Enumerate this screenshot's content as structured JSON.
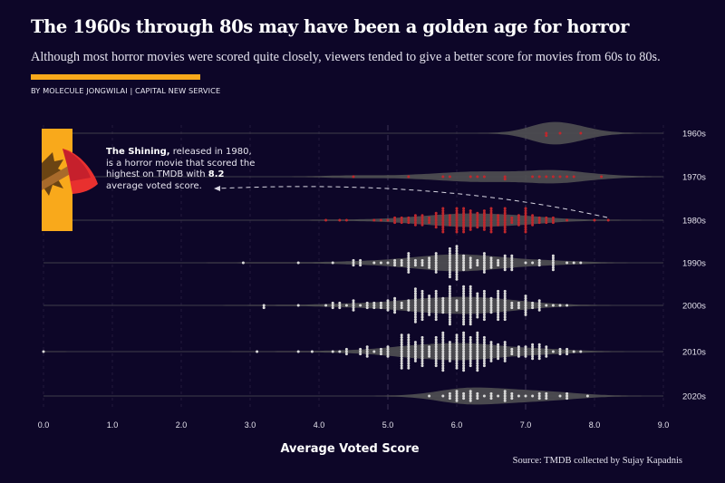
{
  "header": {
    "title": "The 1960s through 80s may have been a golden age for horror",
    "subtitle": "Although most horror movies were scored quite closely, viewers tended to give a better score for movies from 60s to 80s.",
    "byline": "BY MOLECULE JONGWILAI  |  CAPITAL NEW SERVICE",
    "accent_color": "#f9a91b"
  },
  "annotation": {
    "movie": "The Shining,",
    "text_1": " released in 1980, is a horror movie that scored the highest on TMDB with ",
    "score": "8.2",
    "text_2": " average voted score.",
    "icon": "axe-icon"
  },
  "source": "Source: TMDB collected by Sujay Kapadnis",
  "chart_data": {
    "type": "beeswarm-violin",
    "xlabel": "Average Voted Score",
    "xlim": [
      0,
      9
    ],
    "xticks": [
      "0.0",
      "1.0",
      "2.0",
      "3.0",
      "4.0",
      "5.0",
      "6.0",
      "7.0",
      "8.0",
      "9.0"
    ],
    "highlight_color": "#c0272d",
    "dot_color": "#d9d9d9",
    "violin_color": "#555555",
    "series": [
      {
        "name": "1960s",
        "highlight": true,
        "bins": [
          [
            7.3,
            2
          ],
          [
            7.5,
            1
          ],
          [
            7.8,
            1
          ]
        ]
      },
      {
        "name": "1970s",
        "highlight": true,
        "bins": [
          [
            4.5,
            1
          ],
          [
            5.3,
            1
          ],
          [
            5.8,
            1
          ],
          [
            5.9,
            1
          ],
          [
            6.2,
            1
          ],
          [
            6.3,
            1
          ],
          [
            6.4,
            1
          ],
          [
            6.7,
            2
          ],
          [
            7.1,
            1
          ],
          [
            7.2,
            1
          ],
          [
            7.3,
            1
          ],
          [
            7.4,
            1
          ],
          [
            7.5,
            1
          ],
          [
            7.6,
            1
          ],
          [
            7.7,
            1
          ],
          [
            8.1,
            1
          ]
        ]
      },
      {
        "name": "1980s",
        "highlight": true,
        "bins": [
          [
            4.1,
            1
          ],
          [
            4.3,
            1
          ],
          [
            4.4,
            1
          ],
          [
            4.8,
            1
          ],
          [
            4.9,
            1
          ],
          [
            5.0,
            1
          ],
          [
            5.1,
            3
          ],
          [
            5.2,
            3
          ],
          [
            5.3,
            3
          ],
          [
            5.4,
            5
          ],
          [
            5.5,
            5
          ],
          [
            5.6,
            3
          ],
          [
            5.7,
            7
          ],
          [
            5.8,
            11
          ],
          [
            5.9,
            5
          ],
          [
            6.0,
            11
          ],
          [
            6.1,
            11
          ],
          [
            6.2,
            9
          ],
          [
            6.3,
            7
          ],
          [
            6.4,
            9
          ],
          [
            6.5,
            11
          ],
          [
            6.6,
            5
          ],
          [
            6.7,
            11
          ],
          [
            6.8,
            3
          ],
          [
            6.9,
            5
          ],
          [
            7.0,
            11
          ],
          [
            7.1,
            5
          ],
          [
            7.2,
            3
          ],
          [
            7.3,
            3
          ],
          [
            7.4,
            3
          ],
          [
            7.6,
            1
          ],
          [
            8.0,
            1
          ],
          [
            8.2,
            1
          ]
        ]
      },
      {
        "name": "1990s",
        "highlight": false,
        "bins": [
          [
            2.9,
            1
          ],
          [
            3.7,
            1
          ],
          [
            4.2,
            1
          ],
          [
            4.5,
            3
          ],
          [
            4.6,
            3
          ],
          [
            4.8,
            1
          ],
          [
            4.9,
            1
          ],
          [
            5.0,
            1
          ],
          [
            5.1,
            3
          ],
          [
            5.2,
            3
          ],
          [
            5.3,
            9
          ],
          [
            5.4,
            3
          ],
          [
            5.5,
            3
          ],
          [
            5.6,
            5
          ],
          [
            5.7,
            9
          ],
          [
            5.9,
            13
          ],
          [
            6.0,
            15
          ],
          [
            6.1,
            7
          ],
          [
            6.2,
            5
          ],
          [
            6.3,
            3
          ],
          [
            6.4,
            9
          ],
          [
            6.5,
            5
          ],
          [
            6.6,
            3
          ],
          [
            6.7,
            7
          ],
          [
            6.8,
            7
          ],
          [
            7.0,
            1
          ],
          [
            7.1,
            1
          ],
          [
            7.2,
            3
          ],
          [
            7.4,
            7
          ],
          [
            7.6,
            1
          ],
          [
            7.7,
            1
          ],
          [
            7.8,
            1
          ]
        ]
      },
      {
        "name": "2000s",
        "highlight": false,
        "bins": [
          [
            3.2,
            2
          ],
          [
            3.7,
            1
          ],
          [
            4.1,
            1
          ],
          [
            4.2,
            3
          ],
          [
            4.3,
            3
          ],
          [
            4.4,
            1
          ],
          [
            4.5,
            5
          ],
          [
            4.6,
            1
          ],
          [
            4.7,
            3
          ],
          [
            4.8,
            3
          ],
          [
            4.9,
            3
          ],
          [
            5.0,
            5
          ],
          [
            5.1,
            7
          ],
          [
            5.2,
            3
          ],
          [
            5.3,
            5
          ],
          [
            5.4,
            15
          ],
          [
            5.5,
            13
          ],
          [
            5.6,
            9
          ],
          [
            5.7,
            13
          ],
          [
            5.8,
            7
          ],
          [
            5.9,
            17
          ],
          [
            6.0,
            5
          ],
          [
            6.1,
            17
          ],
          [
            6.2,
            17
          ],
          [
            6.3,
            11
          ],
          [
            6.4,
            13
          ],
          [
            6.5,
            7
          ],
          [
            6.6,
            13
          ],
          [
            6.7,
            13
          ],
          [
            6.8,
            3
          ],
          [
            6.9,
            3
          ],
          [
            7.0,
            9
          ],
          [
            7.1,
            3
          ],
          [
            7.2,
            5
          ],
          [
            7.3,
            1
          ],
          [
            7.4,
            1
          ],
          [
            7.5,
            1
          ],
          [
            7.6,
            1
          ]
        ]
      },
      {
        "name": "2010s",
        "highlight": false,
        "bins": [
          [
            0.0,
            1
          ],
          [
            3.1,
            1
          ],
          [
            3.7,
            1
          ],
          [
            3.9,
            1
          ],
          [
            4.2,
            1
          ],
          [
            4.3,
            1
          ],
          [
            4.4,
            3
          ],
          [
            4.6,
            3
          ],
          [
            4.7,
            5
          ],
          [
            4.8,
            1
          ],
          [
            4.9,
            3
          ],
          [
            5.0,
            5
          ],
          [
            5.2,
            15
          ],
          [
            5.3,
            15
          ],
          [
            5.4,
            9
          ],
          [
            5.5,
            13
          ],
          [
            5.6,
            5
          ],
          [
            5.7,
            13
          ],
          [
            5.8,
            17
          ],
          [
            5.9,
            9
          ],
          [
            6.0,
            15
          ],
          [
            6.1,
            17
          ],
          [
            6.2,
            13
          ],
          [
            6.3,
            17
          ],
          [
            6.4,
            13
          ],
          [
            6.5,
            9
          ],
          [
            6.6,
            7
          ],
          [
            6.7,
            9
          ],
          [
            6.8,
            3
          ],
          [
            6.9,
            5
          ],
          [
            7.0,
            5
          ],
          [
            7.1,
            7
          ],
          [
            7.2,
            7
          ],
          [
            7.3,
            5
          ],
          [
            7.4,
            1
          ],
          [
            7.5,
            3
          ],
          [
            7.6,
            3
          ],
          [
            7.7,
            1
          ],
          [
            7.8,
            1
          ]
        ]
      },
      {
        "name": "2020s",
        "highlight": false,
        "bins": [
          [
            5.6,
            1
          ],
          [
            5.8,
            1
          ],
          [
            5.9,
            3
          ],
          [
            6.0,
            5
          ],
          [
            6.1,
            3
          ],
          [
            6.2,
            5
          ],
          [
            6.3,
            3
          ],
          [
            6.4,
            1
          ],
          [
            6.5,
            3
          ],
          [
            6.6,
            1
          ],
          [
            6.7,
            5
          ],
          [
            6.8,
            3
          ],
          [
            6.9,
            1
          ],
          [
            7.0,
            1
          ],
          [
            7.1,
            1
          ],
          [
            7.2,
            3
          ],
          [
            7.3,
            3
          ],
          [
            7.5,
            1
          ],
          [
            7.6,
            3
          ],
          [
            7.9,
            1
          ]
        ]
      }
    ]
  }
}
